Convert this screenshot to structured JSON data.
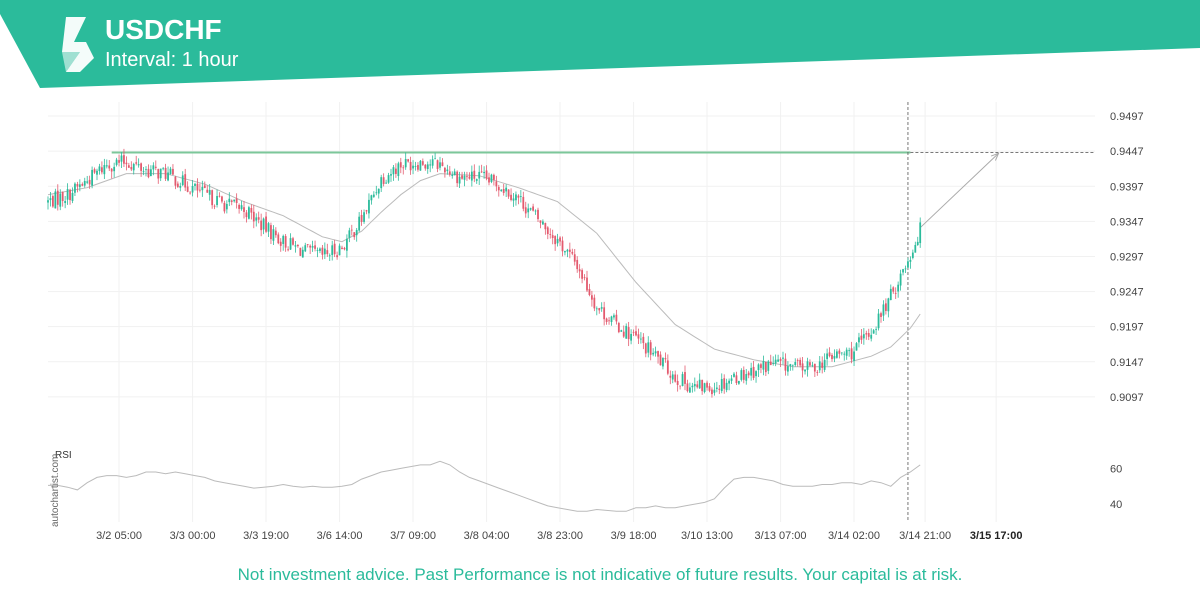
{
  "header": {
    "symbol": "USDCHF",
    "interval": "Interval: 1 hour",
    "color": "#2bbb9b",
    "logo_icon": "autochartist-logo-icon"
  },
  "watermark": "autochartist.com",
  "disclaimer": "Not investment advice. Past Performance is not indicative of future results. Your capital is at risk.",
  "colors": {
    "up": "#2bbb9b",
    "down": "#e35a6e",
    "ma": "#bbbbbb",
    "pattern": "#7cc79a",
    "rsi": "#bbbbbb"
  },
  "chart_data": [
    {
      "type": "candlestick",
      "title": "USDCHF",
      "ylim": [
        0.9047,
        0.9517
      ],
      "y_ticks": [
        "0.9497",
        "0.9447",
        "0.9397",
        "0.9347",
        "0.9297",
        "0.9247",
        "0.9197",
        "0.9147",
        "0.9097"
      ],
      "x_ticks": [
        "3/2 05:00",
        "3/3 00:00",
        "3/3 19:00",
        "3/6 14:00",
        "3/7 09:00",
        "3/8 04:00",
        "3/8 23:00",
        "3/9 18:00",
        "3/10 13:00",
        "3/13 07:00",
        "3/14 02:00",
        "3/14 21:00",
        "3/15 17:00"
      ],
      "highlight_x_tick": "3/15 17:00",
      "close_path": [
        [
          0,
          0.9375
        ],
        [
          8,
          0.9385
        ],
        [
          16,
          0.9405
        ],
        [
          24,
          0.9428
        ],
        [
          32,
          0.9432
        ],
        [
          40,
          0.942
        ],
        [
          48,
          0.9415
        ],
        [
          56,
          0.94
        ],
        [
          64,
          0.9385
        ],
        [
          72,
          0.9372
        ],
        [
          80,
          0.9365
        ],
        [
          88,
          0.934
        ],
        [
          96,
          0.9318
        ],
        [
          104,
          0.9305
        ],
        [
          112,
          0.9298
        ],
        [
          120,
          0.931
        ],
        [
          128,
          0.935
        ],
        [
          136,
          0.9408
        ],
        [
          144,
          0.9428
        ],
        [
          152,
          0.9432
        ],
        [
          160,
          0.9428
        ],
        [
          168,
          0.941
        ],
        [
          176,
          0.941
        ],
        [
          184,
          0.94
        ],
        [
          192,
          0.938
        ],
        [
          200,
          0.935
        ],
        [
          208,
          0.932
        ],
        [
          216,
          0.9285
        ],
        [
          224,
          0.9225
        ],
        [
          232,
          0.92
        ],
        [
          240,
          0.918
        ],
        [
          248,
          0.9155
        ],
        [
          256,
          0.9125
        ],
        [
          264,
          0.911
        ],
        [
          272,
          0.9112
        ],
        [
          280,
          0.9125
        ],
        [
          288,
          0.9135
        ],
        [
          296,
          0.9145
        ],
        [
          304,
          0.914
        ],
        [
          312,
          0.9138
        ],
        [
          320,
          0.9155
        ],
        [
          328,
          0.916
        ],
        [
          336,
          0.919
        ],
        [
          344,
          0.924
        ],
        [
          352,
          0.93
        ],
        [
          356,
          0.9335
        ]
      ],
      "ma_path": [
        [
          0,
          0.9385
        ],
        [
          16,
          0.9395
        ],
        [
          32,
          0.9415
        ],
        [
          48,
          0.9415
        ],
        [
          64,
          0.94
        ],
        [
          80,
          0.9375
        ],
        [
          96,
          0.9355
        ],
        [
          112,
          0.9325
        ],
        [
          120,
          0.9318
        ],
        [
          128,
          0.9333
        ],
        [
          136,
          0.936
        ],
        [
          144,
          0.9385
        ],
        [
          152,
          0.9405
        ],
        [
          160,
          0.9415
        ],
        [
          176,
          0.9412
        ],
        [
          192,
          0.9395
        ],
        [
          208,
          0.9375
        ],
        [
          224,
          0.933
        ],
        [
          240,
          0.926
        ],
        [
          256,
          0.92
        ],
        [
          272,
          0.9165
        ],
        [
          288,
          0.915
        ],
        [
          304,
          0.914
        ],
        [
          320,
          0.914
        ],
        [
          336,
          0.9155
        ],
        [
          344,
          0.9168
        ],
        [
          352,
          0.9195
        ],
        [
          356,
          0.9215
        ]
      ],
      "pattern": {
        "level": 0.9445,
        "start_index": 26,
        "end_index": 352,
        "projection": {
          "from": [
            356,
            0.9338
          ],
          "to": [
            388,
            0.9444
          ]
        }
      },
      "current_bar_index": 351,
      "total_bars": 390
    },
    {
      "type": "line",
      "title": "RSI",
      "ylim": [
        30,
        72
      ],
      "y_ticks": [
        "60",
        "40"
      ],
      "path": [
        [
          0,
          50.5
        ],
        [
          4,
          50.5
        ],
        [
          8,
          49.5
        ],
        [
          12,
          48.0
        ],
        [
          16,
          52.0
        ],
        [
          20,
          55.0
        ],
        [
          24,
          56.0
        ],
        [
          28,
          56.0
        ],
        [
          32,
          55.0
        ],
        [
          36,
          56.0
        ],
        [
          40,
          58.0
        ],
        [
          44,
          58.0
        ],
        [
          48,
          57.0
        ],
        [
          52,
          58.0
        ],
        [
          56,
          57.0
        ],
        [
          60,
          56.0
        ],
        [
          64,
          55.0
        ],
        [
          68,
          53.0
        ],
        [
          72,
          52.0
        ],
        [
          76,
          51.0
        ],
        [
          80,
          50.0
        ],
        [
          84,
          49.0
        ],
        [
          88,
          49.5
        ],
        [
          92,
          50.0
        ],
        [
          96,
          51.0
        ],
        [
          100,
          50.0
        ],
        [
          104,
          49.5
        ],
        [
          108,
          50.0
        ],
        [
          112,
          49.5
        ],
        [
          116,
          49.5
        ],
        [
          120,
          50.0
        ],
        [
          124,
          51.0
        ],
        [
          128,
          54.0
        ],
        [
          132,
          56.0
        ],
        [
          136,
          58.0
        ],
        [
          140,
          59.0
        ],
        [
          144,
          60.0
        ],
        [
          148,
          61.0
        ],
        [
          152,
          62.0
        ],
        [
          156,
          62.0
        ],
        [
          160,
          64.0
        ],
        [
          164,
          62.0
        ],
        [
          168,
          58.0
        ],
        [
          172,
          55.0
        ],
        [
          176,
          53.0
        ],
        [
          180,
          51.0
        ],
        [
          184,
          49.0
        ],
        [
          188,
          47.0
        ],
        [
          192,
          45.0
        ],
        [
          196,
          43.0
        ],
        [
          200,
          41.0
        ],
        [
          204,
          39.0
        ],
        [
          208,
          38.0
        ],
        [
          212,
          37.0
        ],
        [
          216,
          36.0
        ],
        [
          220,
          36.0
        ],
        [
          224,
          37.0
        ],
        [
          228,
          36.5
        ],
        [
          232,
          36.0
        ],
        [
          236,
          36.0
        ],
        [
          240,
          38.0
        ],
        [
          244,
          38.0
        ],
        [
          248,
          39.0
        ],
        [
          252,
          38.0
        ],
        [
          256,
          38.0
        ],
        [
          260,
          39.0
        ],
        [
          264,
          40.0
        ],
        [
          268,
          41.0
        ],
        [
          272,
          43.0
        ],
        [
          276,
          49.0
        ],
        [
          280,
          54.0
        ],
        [
          284,
          55.0
        ],
        [
          288,
          55.0
        ],
        [
          292,
          54.0
        ],
        [
          296,
          53.0
        ],
        [
          300,
          51.0
        ],
        [
          304,
          50.0
        ],
        [
          308,
          50.0
        ],
        [
          312,
          50.0
        ],
        [
          316,
          51.0
        ],
        [
          320,
          51.0
        ],
        [
          324,
          52.0
        ],
        [
          328,
          52.0
        ],
        [
          332,
          51.0
        ],
        [
          336,
          53.0
        ],
        [
          340,
          52.0
        ],
        [
          344,
          50.0
        ],
        [
          348,
          55.0
        ],
        [
          352,
          58.0
        ],
        [
          356,
          62.0
        ]
      ]
    }
  ]
}
